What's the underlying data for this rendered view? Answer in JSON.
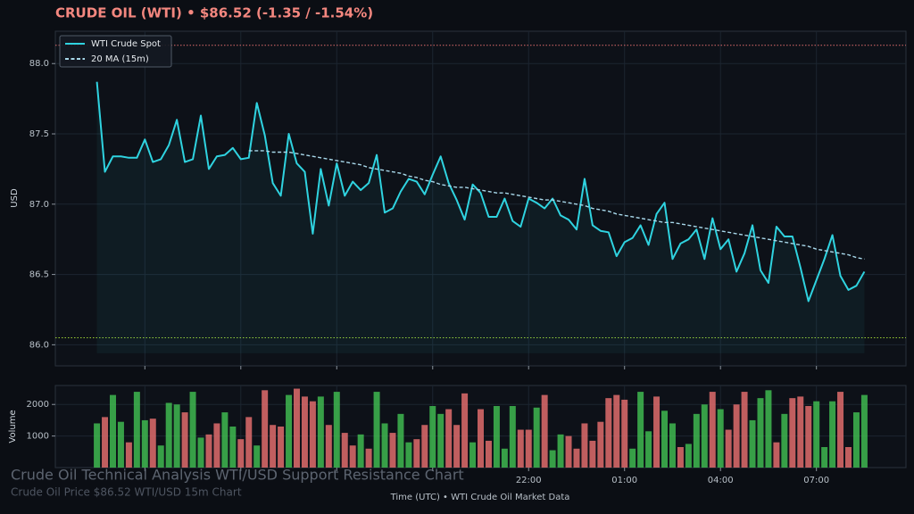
{
  "title": "CRUDE OIL (WTI)  •  $86.52  (-1.35 / -1.54%)",
  "overlay": {
    "title": "Crude Oil Technical Analysis WTI/USD Support Resistance Chart",
    "subtitle": "Crude Oil Price $86.52 WTI/USD 15m Chart"
  },
  "chart_data": [
    {
      "type": "line",
      "ylabel": "USD",
      "legend": "upper left",
      "grid": true,
      "x": [
        8.5,
        8.75,
        9,
        9.25,
        9.5,
        9.75,
        10,
        10.25,
        10.5,
        10.75,
        11,
        11.25,
        11.5,
        11.75,
        12,
        12.25,
        12.5,
        12.75,
        13,
        13.25,
        13.5,
        13.75,
        14,
        14.25,
        14.5,
        14.75,
        15,
        15.25,
        15.5,
        15.75,
        16,
        16.25,
        16.5,
        16.75,
        17,
        17.25,
        17.5,
        17.75,
        18,
        18.25,
        18.5,
        18.75,
        19,
        19.25,
        19.5,
        19.75,
        20,
        20.25,
        20.5,
        20.75,
        21,
        21.25,
        21.5,
        21.75,
        22,
        22.25,
        22.5,
        22.75,
        23,
        23.25,
        23.5,
        23.75,
        24,
        24.25,
        24.5,
        24.75,
        25,
        25.25,
        25.5,
        25.75,
        26,
        26.25,
        26.5,
        26.75,
        27,
        27.25,
        27.5,
        27.75,
        28,
        28.25,
        28.5,
        28.75,
        29,
        29.25,
        29.5,
        29.75,
        30,
        30.25,
        30.5,
        30.75,
        31,
        31.25,
        31.5,
        31.75,
        32,
        32.25,
        32.5
      ],
      "series": [
        {
          "name": "WTI Crude Spot",
          "color": "#2fd3e0",
          "style": "solid",
          "fill": true,
          "values": [
            87.87,
            87.23,
            87.34,
            87.34,
            87.33,
            87.33,
            87.46,
            87.3,
            87.32,
            87.42,
            87.6,
            87.3,
            87.32,
            87.63,
            87.25,
            87.34,
            87.35,
            87.4,
            87.32,
            87.33,
            87.72,
            87.49,
            87.15,
            87.06,
            87.5,
            87.29,
            87.23,
            86.79,
            87.25,
            86.99,
            87.29,
            87.06,
            87.16,
            87.1,
            87.15,
            87.35,
            86.94,
            86.97,
            87.09,
            87.18,
            87.16,
            87.07,
            87.21,
            87.34,
            87.15,
            87.03,
            86.89,
            87.14,
            87.08,
            86.91,
            86.91,
            87.04,
            86.88,
            86.84,
            87.04,
            87.01,
            86.97,
            87.04,
            86.92,
            86.89,
            86.82,
            87.18,
            86.85,
            86.81,
            86.8,
            86.63,
            86.73,
            86.76,
            86.85,
            86.71,
            86.93,
            87.01,
            86.61,
            86.72,
            86.75,
            86.82,
            86.61,
            86.9,
            86.68,
            86.75,
            86.52,
            86.65,
            86.85,
            86.53,
            86.44,
            86.84,
            86.77,
            86.77,
            86.55,
            86.31,
            86.46,
            86.61,
            86.78,
            86.49,
            86.39,
            86.42,
            86.52
          ]
        },
        {
          "name": "20 MA (15m)",
          "color": "#a8d8ea",
          "style": "dashed",
          "values": [
            null,
            null,
            null,
            null,
            null,
            null,
            null,
            null,
            null,
            null,
            null,
            null,
            null,
            null,
            null,
            null,
            null,
            null,
            null,
            87.38,
            87.38,
            87.38,
            87.37,
            87.37,
            87.37,
            87.36,
            87.35,
            87.34,
            87.33,
            87.32,
            87.31,
            87.3,
            87.29,
            87.28,
            87.26,
            87.25,
            87.24,
            87.23,
            87.22,
            87.2,
            87.19,
            87.17,
            87.16,
            87.14,
            87.13,
            87.12,
            87.12,
            87.11,
            87.1,
            87.09,
            87.08,
            87.08,
            87.07,
            87.06,
            87.05,
            87.04,
            87.03,
            87.03,
            87.02,
            87.01,
            87.0,
            86.99,
            86.97,
            86.96,
            86.95,
            86.93,
            86.92,
            86.91,
            86.9,
            86.89,
            86.88,
            86.87,
            86.87,
            86.86,
            86.85,
            86.84,
            86.83,
            86.82,
            86.81,
            86.8,
            86.79,
            86.78,
            86.77,
            86.76,
            86.75,
            86.74,
            86.73,
            86.72,
            86.71,
            86.7,
            86.68,
            86.67,
            86.66,
            86.65,
            86.64,
            86.62,
            86.61
          ]
        }
      ],
      "area_base": 85.94,
      "hlines": [
        {
          "value": 88.13,
          "color": "#e06c6c"
        },
        {
          "value": 86.05,
          "color": "#9acd32"
        }
      ],
      "xlim": [
        7.2,
        33.8
      ],
      "xticks": [
        {
          "value": 10,
          "label": null
        },
        {
          "value": 13,
          "label": null
        },
        {
          "value": 16,
          "label": null
        },
        {
          "value": 19,
          "label": null
        },
        {
          "value": 22,
          "label": null
        },
        {
          "value": 25,
          "label": null
        },
        {
          "value": 28,
          "label": null
        },
        {
          "value": 31,
          "label": null
        }
      ],
      "ylim": [
        85.85,
        88.23
      ],
      "yticks": [
        {
          "value": 86,
          "label": "86.0"
        },
        86.5,
        {
          "value": 87,
          "label": "87.0"
        },
        87.5,
        {
          "value": 88,
          "label": "88.0"
        }
      ]
    },
    {
      "type": "bar",
      "ylabel": "Volume",
      "xlabel": "Time (UTC)  •  WTI Crude Oil Market Data",
      "grid": true,
      "x": [
        8.5,
        8.75,
        9,
        9.25,
        9.5,
        9.75,
        10,
        10.25,
        10.5,
        10.75,
        11,
        11.25,
        11.5,
        11.75,
        12,
        12.25,
        12.5,
        12.75,
        13,
        13.25,
        13.5,
        13.75,
        14,
        14.25,
        14.5,
        14.75,
        15,
        15.25,
        15.5,
        15.75,
        16,
        16.25,
        16.5,
        16.75,
        17,
        17.25,
        17.5,
        17.75,
        18,
        18.25,
        18.5,
        18.75,
        19,
        19.25,
        19.5,
        19.75,
        20,
        20.25,
        20.5,
        20.75,
        21,
        21.25,
        21.5,
        21.75,
        22,
        22.25,
        22.5,
        22.75,
        23,
        23.25,
        23.5,
        23.75,
        24,
        24.25,
        24.5,
        24.75,
        25,
        25.25,
        25.5,
        25.75,
        26,
        26.25,
        26.5,
        26.75,
        27,
        27.25,
        27.5,
        27.75,
        28,
        28.25,
        28.5,
        28.75,
        29,
        29.25,
        29.5,
        29.75,
        30,
        30.25,
        30.5,
        30.75,
        31,
        31.25,
        31.5,
        31.75,
        32,
        32.25,
        32.5
      ],
      "values": [
        1400,
        1600,
        2300,
        1450,
        800,
        2400,
        1500,
        1550,
        700,
        2050,
        2000,
        1750,
        2400,
        950,
        1050,
        1400,
        1750,
        1300,
        900,
        1600,
        700,
        2450,
        1350,
        1300,
        2300,
        2500,
        2250,
        2100,
        2250,
        1350,
        2400,
        1100,
        700,
        1050,
        600,
        2400,
        1400,
        1100,
        1700,
        800,
        900,
        1350,
        1950,
        1700,
        1850,
        1350,
        2350,
        800,
        1850,
        850,
        1950,
        600,
        1950,
        1200,
        1200,
        1900,
        2300,
        550,
        1050,
        1000,
        600,
        1400,
        850,
        1450,
        2200,
        2300,
        2150,
        600,
        2400,
        1150,
        2250,
        1800,
        1400,
        650,
        750,
        1700,
        2000,
        2400,
        1850,
        1200,
        2000,
        2400,
        1500,
        2200,
        2450,
        800,
        1700,
        2200,
        2250,
        1950,
        2100,
        650,
        2100,
        2400,
        650,
        1750,
        2300
      ],
      "colors": [
        "#3fb950",
        "#e06c6c",
        "#3fb950",
        "#3fb950",
        "#e06c6c",
        "#3fb950",
        "#3fb950",
        "#e06c6c",
        "#3fb950",
        "#3fb950",
        "#3fb950",
        "#e06c6c",
        "#3fb950",
        "#3fb950",
        "#e06c6c",
        "#e06c6c",
        "#3fb950",
        "#3fb950",
        "#e06c6c",
        "#e06c6c",
        "#3fb950",
        "#e06c6c",
        "#e06c6c",
        "#e06c6c",
        "#3fb950",
        "#e06c6c",
        "#e06c6c",
        "#e06c6c",
        "#3fb950",
        "#e06c6c",
        "#3fb950",
        "#e06c6c",
        "#e06c6c",
        "#3fb950",
        "#e06c6c",
        "#3fb950",
        "#3fb950",
        "#e06c6c",
        "#3fb950",
        "#3fb950",
        "#e06c6c",
        "#e06c6c",
        "#3fb950",
        "#3fb950",
        "#e06c6c",
        "#e06c6c",
        "#e06c6c",
        "#3fb950",
        "#e06c6c",
        "#e06c6c",
        "#3fb950",
        "#3fb950",
        "#3fb950",
        "#e06c6c",
        "#e06c6c",
        "#3fb950",
        "#e06c6c",
        "#3fb950",
        "#3fb950",
        "#e06c6c",
        "#e06c6c",
        "#e06c6c",
        "#e06c6c",
        "#e06c6c",
        "#e06c6c",
        "#e06c6c",
        "#e06c6c",
        "#3fb950",
        "#3fb950",
        "#3fb950",
        "#e06c6c",
        "#3fb950",
        "#3fb950",
        "#e06c6c",
        "#3fb950",
        "#3fb950",
        "#3fb950",
        "#e06c6c",
        "#3fb950",
        "#e06c6c",
        "#e06c6c",
        "#e06c6c",
        "#3fb950",
        "#3fb950",
        "#3fb950",
        "#e06c6c",
        "#3fb950",
        "#e06c6c",
        "#e06c6c",
        "#e06c6c",
        "#3fb950",
        "#3fb950",
        "#3fb950",
        "#e06c6c",
        "#e06c6c",
        "#3fb950",
        "#3fb950"
      ],
      "xlim": [
        7.2,
        33.8
      ],
      "xticks": [
        {
          "value": 10,
          "label": null
        },
        {
          "value": 13,
          "label": null
        },
        {
          "value": 16,
          "label": null
        },
        {
          "value": 19,
          "label": null
        },
        {
          "value": 22,
          "label": "22:00"
        },
        {
          "value": 25,
          "label": "01:00"
        },
        {
          "value": 28,
          "label": "04:00"
        },
        {
          "value": 31,
          "label": "07:00"
        }
      ],
      "ylim": [
        0,
        2600
      ],
      "yticks": [
        1000,
        2000
      ]
    }
  ]
}
